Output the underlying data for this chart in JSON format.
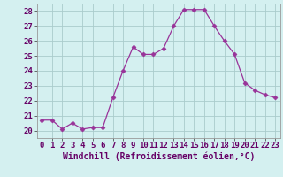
{
  "x": [
    0,
    1,
    2,
    3,
    4,
    5,
    6,
    7,
    8,
    9,
    10,
    11,
    12,
    13,
    14,
    15,
    16,
    17,
    18,
    19,
    20,
    21,
    22,
    23
  ],
  "y": [
    20.7,
    20.7,
    20.1,
    20.5,
    20.1,
    20.2,
    20.2,
    22.2,
    24.0,
    25.6,
    25.1,
    25.1,
    25.5,
    27.0,
    28.1,
    28.1,
    28.1,
    27.0,
    26.0,
    25.1,
    23.2,
    22.7,
    22.4,
    22.2
  ],
  "line_color": "#993399",
  "marker": "D",
  "marker_size": 2.5,
  "bg_color": "#d4f0f0",
  "grid_color": "#aacccc",
  "xlabel": "Windchill (Refroidissement éolien,°C)",
  "xlim": [
    -0.5,
    23.5
  ],
  "ylim": [
    19.5,
    28.5
  ],
  "yticks": [
    20,
    21,
    22,
    23,
    24,
    25,
    26,
    27,
    28
  ],
  "xticks": [
    0,
    1,
    2,
    3,
    4,
    5,
    6,
    7,
    8,
    9,
    10,
    11,
    12,
    13,
    14,
    15,
    16,
    17,
    18,
    19,
    20,
    21,
    22,
    23
  ],
  "xlabel_fontsize": 7,
  "tick_fontsize": 6.5
}
